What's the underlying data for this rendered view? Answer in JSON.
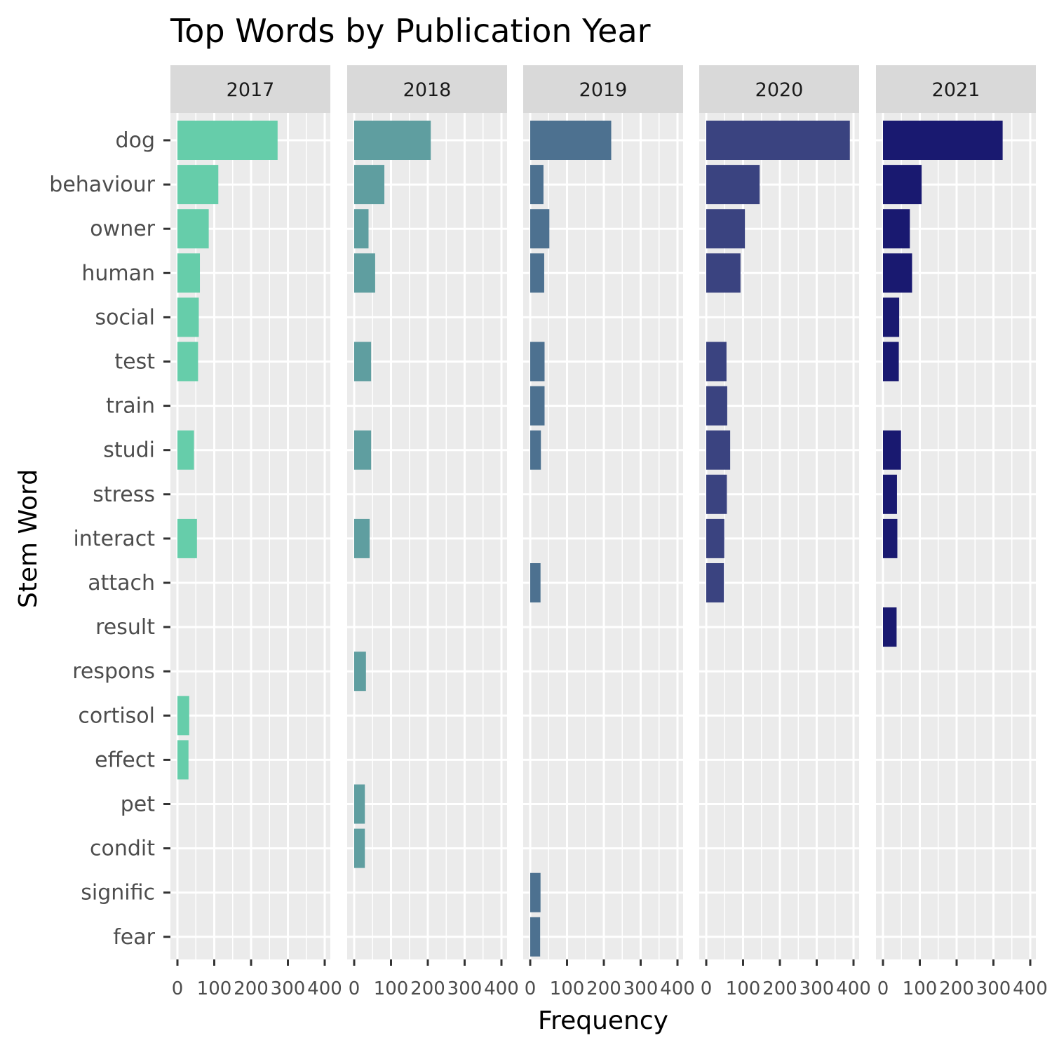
{
  "chart_data": {
    "type": "bar",
    "title": "Top Words by Publication Year",
    "xlabel": "Frequency",
    "ylabel": "Stem Word",
    "orientation": "horizontal",
    "facet_by": "year",
    "xlim": [
      0,
      400
    ],
    "x_ticks": [
      "0",
      "100",
      "200",
      "300",
      "400"
    ],
    "grid": true,
    "legend": "none",
    "categories": [
      "dog",
      "behaviour",
      "owner",
      "human",
      "social",
      "test",
      "train",
      "studi",
      "stress",
      "interact",
      "attach",
      "result",
      "respons",
      "cortisol",
      "effect",
      "pet",
      "condit",
      "signific",
      "fear"
    ],
    "panels": [
      {
        "name": "2017",
        "color": "#66cdaa",
        "values": {
          "dog": 272,
          "behaviour": 111,
          "owner": 85,
          "human": 61,
          "social": 58,
          "test": 56,
          "studi": 45,
          "interact": 53,
          "cortisol": 32,
          "effect": 30
        }
      },
      {
        "name": "2018",
        "color": "#5f9ea0",
        "values": {
          "dog": 208,
          "behaviour": 82,
          "owner": 39,
          "human": 57,
          "test": 46,
          "studi": 46,
          "interact": 42,
          "respons": 32,
          "pet": 29,
          "condit": 29
        }
      },
      {
        "name": "2019",
        "color": "#4d7190",
        "values": {
          "dog": 220,
          "behaviour": 36,
          "owner": 52,
          "human": 38,
          "test": 39,
          "train": 39,
          "studi": 29,
          "attach": 28,
          "signific": 28,
          "fear": 27
        }
      },
      {
        "name": "2020",
        "color": "#3a4380",
        "values": {
          "dog": 390,
          "behaviour": 145,
          "owner": 105,
          "human": 93,
          "test": 55,
          "train": 57,
          "studi": 65,
          "stress": 56,
          "interact": 49,
          "attach": 48
        }
      },
      {
        "name": "2021",
        "color": "#191970",
        "values": {
          "dog": 325,
          "behaviour": 105,
          "owner": 73,
          "human": 79,
          "social": 44,
          "test": 43,
          "studi": 49,
          "stress": 38,
          "interact": 39,
          "result": 37
        }
      }
    ]
  }
}
